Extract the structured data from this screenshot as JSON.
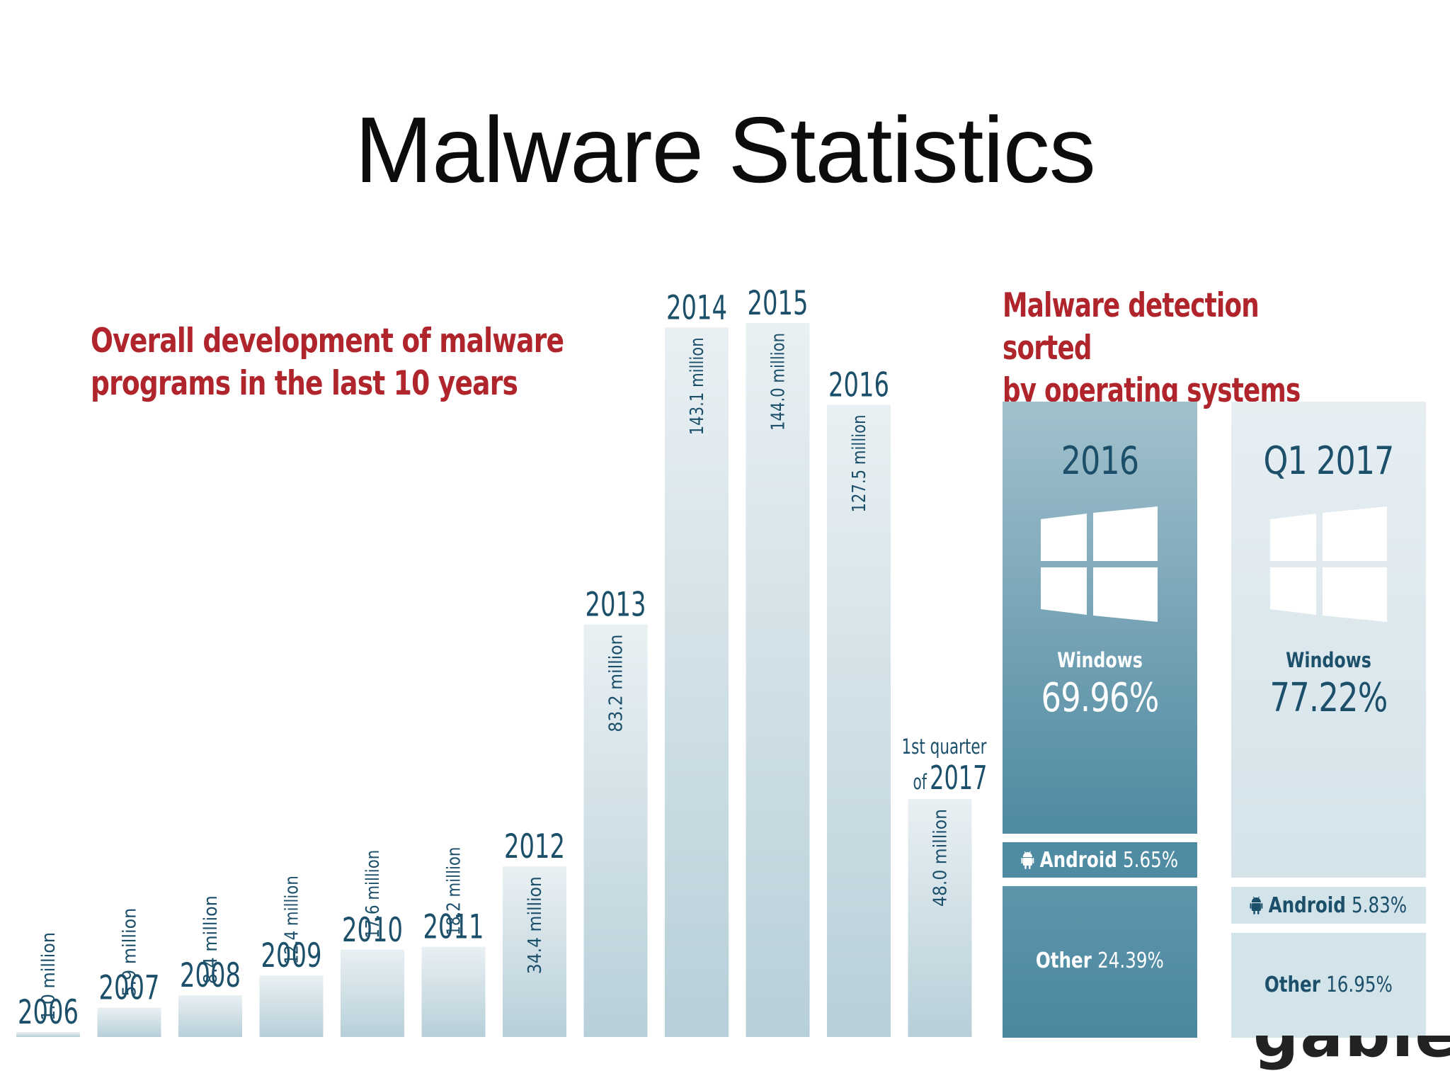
{
  "slide": {
    "title": "Malware Statistics"
  },
  "chart_data": [
    {
      "type": "bar",
      "title": "Overall development of malware programs in the last 10 years",
      "title_lines": [
        "Overall development of malware",
        "programs in the last 10 years"
      ],
      "categories": [
        "2006",
        "2007",
        "2008",
        "2009",
        "2010",
        "2011",
        "2012",
        "2013",
        "2014",
        "2015",
        "2016",
        "1st quarter of 2017"
      ],
      "category_labels": [
        {
          "pre": "",
          "year": "2006"
        },
        {
          "pre": "",
          "year": "2007"
        },
        {
          "pre": "",
          "year": "2008"
        },
        {
          "pre": "",
          "year": "2009"
        },
        {
          "pre": "",
          "year": "2010"
        },
        {
          "pre": "",
          "year": "2011"
        },
        {
          "pre": "",
          "year": "2012"
        },
        {
          "pre": "",
          "year": "2013"
        },
        {
          "pre": "",
          "year": "2014"
        },
        {
          "pre": "",
          "year": "2015"
        },
        {
          "pre": "",
          "year": "2016"
        },
        {
          "pre": "1st quarter",
          "of": "of",
          "year": "2017"
        }
      ],
      "values": [
        1.0,
        5.9,
        8.4,
        12.4,
        17.6,
        18.2,
        34.4,
        83.2,
        143.1,
        144.0,
        127.5,
        48.0
      ],
      "value_labels": [
        "1.0 million",
        "5.9 million",
        "8.4 million",
        "12.4 million",
        "17.6 million",
        "18.2 million",
        "34.4 million",
        "83.2 million",
        "143.1 million",
        "144.0 million",
        "127.5 million",
        "48.0 million"
      ],
      "unit": "million",
      "grid": false
    },
    {
      "type": "bar",
      "subtype": "stacked-100",
      "title": "Malware detection sorted by operating systems",
      "title_lines": [
        "Malware detection sorted",
        "by operating systems"
      ],
      "categories": [
        "2016",
        "Q1 2017"
      ],
      "series": [
        {
          "name": "Windows",
          "values": [
            69.96,
            77.22
          ],
          "labels": [
            "69.96%",
            "77.22%"
          ]
        },
        {
          "name": "Android",
          "values": [
            5.65,
            5.83
          ],
          "labels": [
            "5.65%",
            "5.83%"
          ]
        },
        {
          "name": "Other",
          "values": [
            24.39,
            16.95
          ],
          "labels": [
            "24.39%",
            "16.95%"
          ]
        }
      ]
    }
  ],
  "watermark": {
    "text": "gable"
  },
  "colors": {
    "accent_red": "#b0242b",
    "text_teal": "#1c4f6a",
    "bar_top": "#e9f0f3",
    "bar_bottom": "#b7cfd9",
    "os_dark_top": "#a3c1cd",
    "os_dark_bottom": "#4f8aa1",
    "os_light": "#d3e3ea"
  },
  "icons": [
    "windows-logo-icon",
    "android-icon"
  ]
}
